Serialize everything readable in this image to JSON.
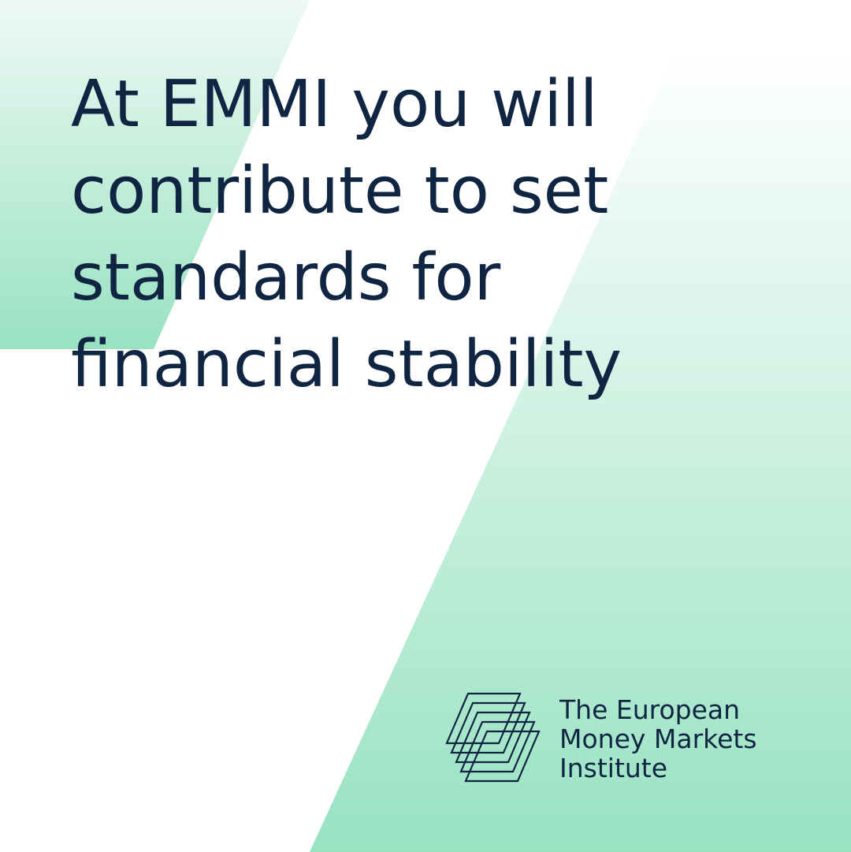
{
  "headline": {
    "lines": [
      "At EMMI you will",
      "contribute to set",
      "standards for",
      "financial stability"
    ]
  },
  "logo": {
    "lines": [
      "The European",
      "Money Markets",
      "Institute"
    ],
    "icon": "stacked-parallelograms-logo"
  },
  "colors": {
    "text": "#0f2542",
    "accent_green": "#98e2c2",
    "background": "#ffffff"
  }
}
